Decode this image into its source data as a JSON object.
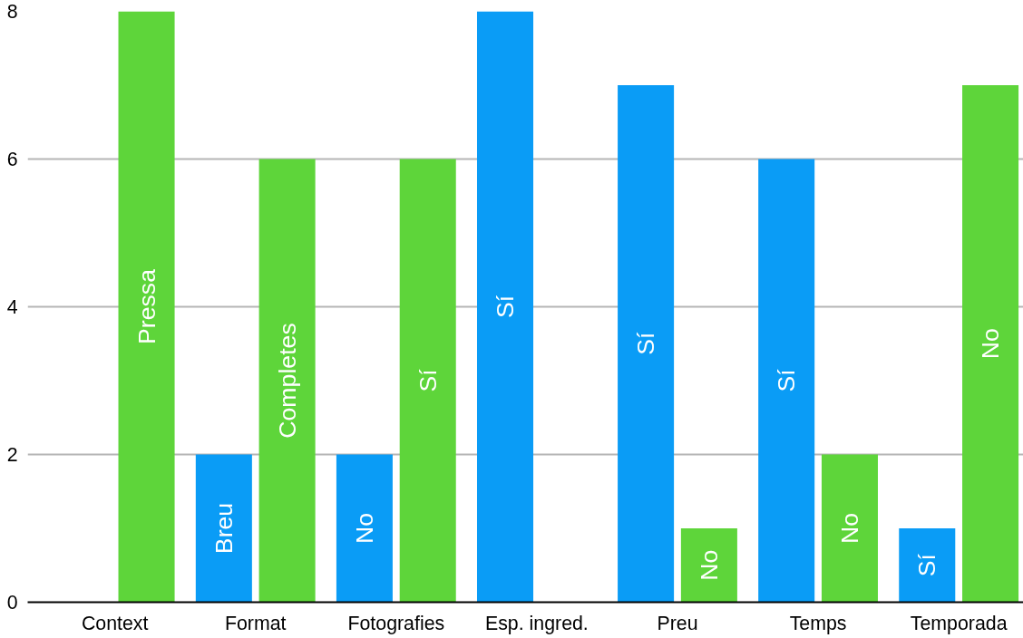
{
  "chart_data": {
    "type": "bar",
    "categories": [
      "Context",
      "Format",
      "Fotografies",
      "Esp. ingred.",
      "Preu",
      "Temps",
      "Temporada"
    ],
    "series": [
      {
        "color": "#0a9cf6",
        "values": [
          null,
          2,
          2,
          8,
          7,
          6,
          1
        ],
        "value_labels": [
          null,
          "Breu",
          "No",
          "Sí",
          "Sí",
          "Sí",
          "Sí"
        ]
      },
      {
        "color": "#5ed53a",
        "values": [
          8,
          6,
          6,
          null,
          1,
          2,
          7
        ],
        "value_labels": [
          "Pressa",
          "Completes",
          "Sí",
          null,
          "No",
          "No",
          "No"
        ]
      }
    ],
    "ylim": [
      0,
      8
    ],
    "yticks": [
      0,
      2,
      4,
      6,
      8
    ],
    "grid": "y"
  }
}
